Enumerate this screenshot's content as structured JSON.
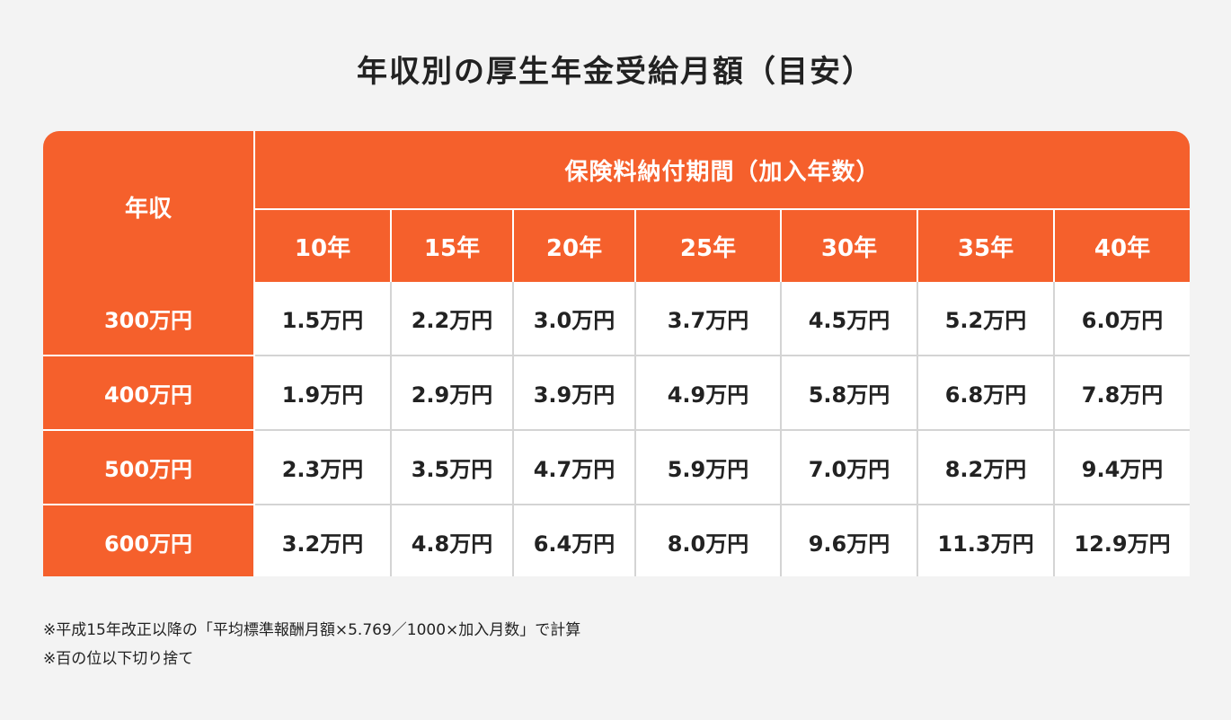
{
  "title": "年収別の厚生年金受給月額（目安）",
  "table": {
    "corner_header": "年収",
    "group_header": "保険料納付期間（加入年数）",
    "columns": [
      "10年",
      "15年",
      "20年",
      "25年",
      "30年",
      "35年",
      "40年"
    ],
    "rows": [
      {
        "income": "300万円",
        "values": [
          "1.5万円",
          "2.2万円",
          "3.0万円",
          "3.7万円",
          "4.5万円",
          "5.2万円",
          "6.0万円"
        ]
      },
      {
        "income": "400万円",
        "values": [
          "1.9万円",
          "2.9万円",
          "3.9万円",
          "4.9万円",
          "5.8万円",
          "6.8万円",
          "7.8万円"
        ]
      },
      {
        "income": "500万円",
        "values": [
          "2.3万円",
          "3.5万円",
          "4.7万円",
          "5.9万円",
          "7.0万円",
          "8.2万円",
          "9.4万円"
        ]
      },
      {
        "income": "600万円",
        "values": [
          "3.2万円",
          "4.8万円",
          "6.4万円",
          "8.0万円",
          "9.6万円",
          "11.3万円",
          "12.9万円"
        ]
      }
    ]
  },
  "notes": [
    "※平成15年改正以降の「平均標準報酬月額×5.769／1000×加入月数」で計算",
    "※百の位以下切り捨て"
  ],
  "colors": {
    "header_orange": "#f5602c",
    "background": "#f3f3f3",
    "cell_background": "#ffffff",
    "grid_line": "#d4d4d4"
  }
}
